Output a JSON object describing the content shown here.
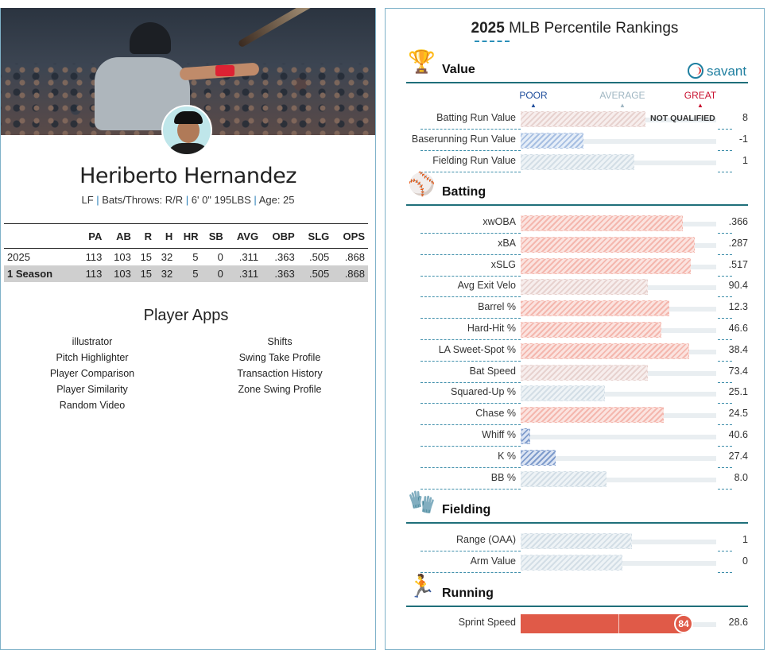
{
  "player": {
    "name": "Heriberto Hernandez",
    "bio": {
      "pos": "LF",
      "bats_throws": "Bats/Throws: R/R",
      "size": "6' 0\" 195LBS",
      "age": "Age: 25"
    },
    "headshot_logo": "M"
  },
  "stats": {
    "headers": [
      "",
      "PA",
      "AB",
      "R",
      "H",
      "HR",
      "SB",
      "AVG",
      "OBP",
      "SLG",
      "OPS"
    ],
    "rows": [
      [
        "2025",
        "113",
        "103",
        "15",
        "32",
        "5",
        "0",
        ".311",
        ".363",
        ".505",
        ".868"
      ]
    ],
    "total": [
      "1 Season",
      "113",
      "103",
      "15",
      "32",
      "5",
      "0",
      ".311",
      ".363",
      ".505",
      ".868"
    ]
  },
  "apps": {
    "title": "Player Apps",
    "left": [
      "illustrator",
      "Pitch Highlighter",
      "Player Comparison",
      "Player Similarity",
      "Random Video"
    ],
    "right": [
      "Shifts",
      "Swing Take Profile",
      "Transaction History",
      "Zone Swing Profile"
    ]
  },
  "rankings": {
    "title_year": "2025",
    "title_rest": " MLB Percentile Rankings",
    "brand": "savant",
    "scale": {
      "poor": "POOR",
      "average": "AVERAGE",
      "great": "GREAT"
    },
    "colors": {
      "poor": "#1f4e9c",
      "average": "#9fb6c2",
      "great": "#c8102e",
      "sprint": "#e05a48"
    },
    "sections": [
      {
        "label": "Value",
        "icon": "trophy-icon",
        "metrics": [
          {
            "label": "Batting Run Value",
            "value": "8",
            "percentile": 64,
            "tone": "neutral-warm",
            "note": "NOT QUALIFIED"
          },
          {
            "label": "Baserunning Run Value",
            "value": "-1",
            "percentile": 32,
            "tone": "cool"
          },
          {
            "label": "Fielding Run Value",
            "value": "1",
            "percentile": 58,
            "tone": "neutral-cool"
          }
        ]
      },
      {
        "label": "Batting",
        "icon": "batter-icon",
        "metrics": [
          {
            "label": "xwOBA",
            "value": ".366",
            "percentile": 83,
            "tone": "warm"
          },
          {
            "label": "xBA",
            "value": ".287",
            "percentile": 89,
            "tone": "warm"
          },
          {
            "label": "xSLG",
            "value": ".517",
            "percentile": 87,
            "tone": "warm"
          },
          {
            "label": "Avg Exit Velo",
            "value": "90.4",
            "percentile": 65,
            "tone": "neutral-warm"
          },
          {
            "label": "Barrel %",
            "value": "12.3",
            "percentile": 76,
            "tone": "warm"
          },
          {
            "label": "Hard-Hit %",
            "value": "46.6",
            "percentile": 72,
            "tone": "warm"
          },
          {
            "label": "LA Sweet-Spot %",
            "value": "38.4",
            "percentile": 86,
            "tone": "warm"
          },
          {
            "label": "Bat Speed",
            "value": "73.4",
            "percentile": 65,
            "tone": "neutral-warm"
          },
          {
            "label": "Squared-Up %",
            "value": "25.1",
            "percentile": 43,
            "tone": "neutral-cool"
          },
          {
            "label": "Chase %",
            "value": "24.5",
            "percentile": 73,
            "tone": "warm"
          },
          {
            "label": "Whiff %",
            "value": "40.6",
            "percentile": 5,
            "tone": "cold"
          },
          {
            "label": "K %",
            "value": "27.4",
            "percentile": 18,
            "tone": "cold"
          },
          {
            "label": "BB %",
            "value": "8.0",
            "percentile": 44,
            "tone": "neutral-cool"
          }
        ]
      },
      {
        "label": "Fielding",
        "icon": "fielder-icon",
        "metrics": [
          {
            "label": "Range (OAA)",
            "value": "1",
            "percentile": 57,
            "tone": "neutral-cool"
          },
          {
            "label": "Arm Value",
            "value": "0",
            "percentile": 52,
            "tone": "neutral-cool"
          }
        ]
      },
      {
        "label": "Running",
        "icon": "runner-icon",
        "metrics": [
          {
            "label": "Sprint Speed",
            "value": "28.6",
            "percentile": 84,
            "tone": "solid"
          }
        ]
      }
    ]
  }
}
